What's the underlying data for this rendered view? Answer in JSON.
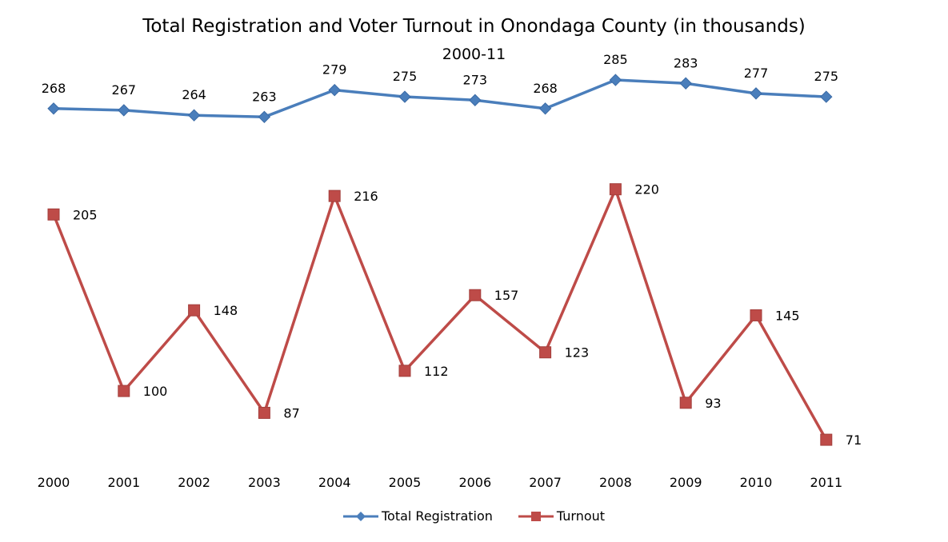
{
  "chart_data": {
    "type": "line",
    "title": "Total Registration and Voter Turnout in Onondaga County (in thousands)",
    "subtitle": "2000-11",
    "xlabel": "",
    "ylabel": "",
    "categories": [
      "2000",
      "2001",
      "2002",
      "2003",
      "2004",
      "2005",
      "2006",
      "2007",
      "2008",
      "2009",
      "2010",
      "2011"
    ],
    "ylim": [
      0,
      300
    ],
    "grid": false,
    "legend_position": "bottom",
    "series": [
      {
        "name": "Total Registration",
        "color": "#4a7ebb",
        "marker": "diamond",
        "label_position": "above",
        "values": [
          268,
          267,
          264,
          263,
          279,
          275,
          273,
          268,
          285,
          283,
          277,
          275
        ]
      },
      {
        "name": "Turnout",
        "color": "#be4b48",
        "marker": "square",
        "label_position": "right",
        "values": [
          205,
          100,
          148,
          87,
          216,
          112,
          157,
          123,
          220,
          93,
          145,
          71
        ]
      }
    ]
  }
}
